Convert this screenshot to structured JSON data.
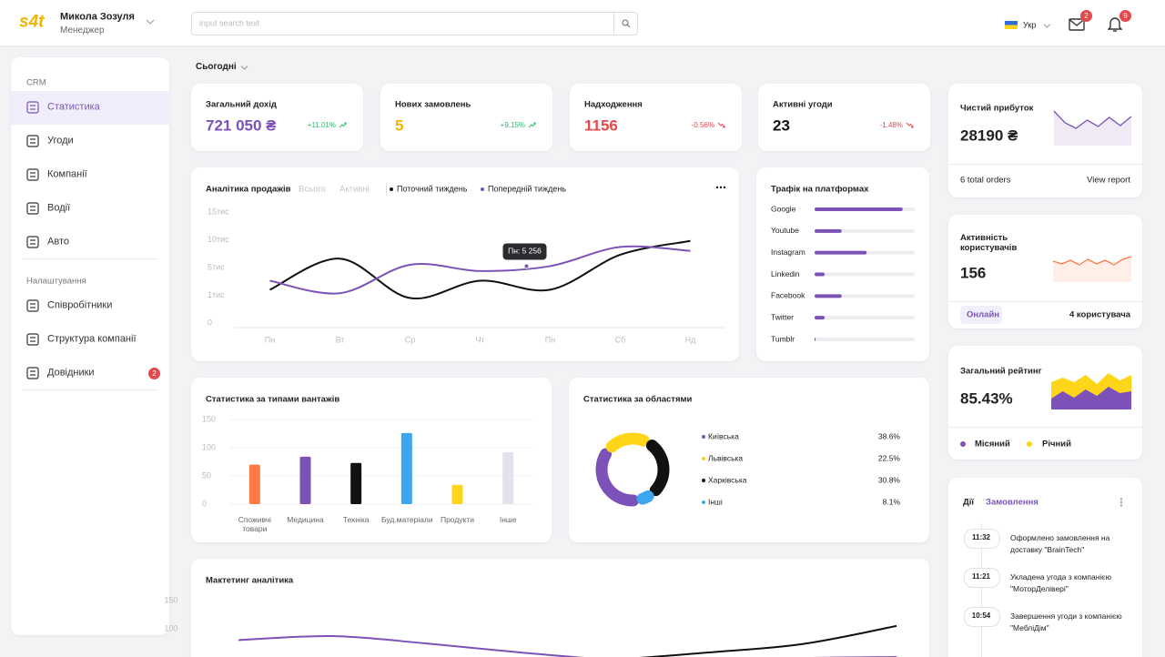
{
  "header": {
    "logo": "s4t",
    "user_name": "Микола Зозуля",
    "user_role": "Менеджер",
    "search_placeholder": "input search text",
    "language": "Укр",
    "mail_count": 2,
    "notification_count": 9
  },
  "sidebar": {
    "sections": [
      {
        "title": "CRM",
        "items": [
          {
            "label": "Статистика",
            "active": true
          },
          {
            "label": "Угоди"
          },
          {
            "label": "Компанії"
          },
          {
            "label": "Водії"
          },
          {
            "label": "Авто"
          }
        ]
      },
      {
        "title": "Налаштування",
        "items": [
          {
            "label": "Співробітники"
          },
          {
            "label": "Структура компанії"
          },
          {
            "label": "Довідники",
            "badge": 2
          }
        ]
      }
    ]
  },
  "period": "Сьогодні",
  "kpis": [
    {
      "label": "Загальний дохід",
      "value": "721 050 ₴",
      "change": "+11.01%",
      "color": "#7c52b8",
      "change_color": "#2eb86b"
    },
    {
      "label": "Нових замовлень",
      "value": "5",
      "change": "+9.15%",
      "color": "#f0b400",
      "change_color": "#2eb86b"
    },
    {
      "label": "Надходження",
      "value": "1156",
      "change": "-0.56%",
      "color": "#e5484d",
      "change_color": "#e5484d"
    },
    {
      "label": "Активні угоди",
      "value": "23",
      "change": "-1.48%",
      "color": "#111111",
      "change_color": "#e5484d"
    }
  ],
  "cards": {
    "profit": {
      "title": "Чистий прибуток",
      "value": "28190 ₴",
      "orders": "6 total orders",
      "link": "View report"
    },
    "activity": {
      "title": "Активність користувачів",
      "value": "156",
      "status": "Онлайн",
      "users": "4 користувача"
    },
    "rating": {
      "title": "Загальний рейтинг",
      "value": "85.43%"
    }
  },
  "actions": {
    "tabs": [
      "Дії",
      "Замовлення"
    ],
    "items": [
      {
        "time": "11:32",
        "text": "Оформлено замовлення на доставку \"BrainTech\""
      },
      {
        "time": "11:21",
        "text": "Укладена угода з компанією \"МоторДелівері\""
      },
      {
        "time": "10:54",
        "text": "Завершення угоди з компанією \"МебліДім\""
      }
    ]
  },
  "chart_data": [
    {
      "type": "line",
      "title": "Аналітика продажів",
      "tabs": [
        "Всього",
        "Активні"
      ],
      "categories": [
        "Пн",
        "Вт",
        "Ср",
        "Чт",
        "Пн",
        "Сб",
        "Нд"
      ],
      "series": [
        {
          "name": "Поточний тиждень",
          "color": "#111111",
          "values": [
            1800,
            6600,
            900,
            3100,
            1800,
            7300,
            9800
          ]
        },
        {
          "name": "Попередній тиждень",
          "color": "#7c52b8",
          "values": [
            3100,
            1300,
            5500,
            4500,
            5256,
            8700,
            8000
          ]
        }
      ],
      "ylim": [
        0,
        15000
      ],
      "yticks": [
        0,
        {
          "value": 1000,
          "label": "1тис"
        },
        {
          "value": 5000,
          "label": "5тис"
        },
        {
          "value": 10000,
          "label": "10тис"
        },
        {
          "value": 15000,
          "label": "15тис"
        }
      ],
      "tick_spaced": true,
      "grid": false,
      "annotation": "Пн: 5 256"
    },
    {
      "type": "bar",
      "horizontal": true,
      "title": "Трафік на платформах",
      "categories": [
        "Google",
        "Youtube",
        "Instagram",
        "Linkedin",
        "Facebook",
        "Twitter",
        "Tumblr"
      ],
      "values": [
        88,
        27,
        52,
        10,
        27,
        10,
        1
      ],
      "xlim": [
        0,
        100
      ],
      "color": "#7c52b8"
    },
    {
      "type": "bar",
      "title": "Статистика за типами вантажів",
      "categories": [
        "Споживчі товари",
        "Медицина",
        "Техніка",
        "Буд.матеріали",
        "Продукти",
        "Інше"
      ],
      "values": [
        70,
        84,
        73,
        126,
        34,
        92
      ],
      "colors": [
        "#ff7a45",
        "#7c52b8",
        "#111111",
        "#3ea6f0",
        "#ffd51a",
        "#e4e2ee"
      ],
      "ylim": [
        0,
        150
      ],
      "yticks": [
        0,
        50,
        100,
        150
      ],
      "grid": true
    },
    {
      "type": "pie",
      "donut": true,
      "title": "Статистика за областями",
      "categories": [
        "Київська",
        "Львівська",
        "Харківська",
        "Інші"
      ],
      "values": [
        38.6,
        22.5,
        30.8,
        8.1
      ],
      "value_labels": [
        "38.6%",
        "22.5%",
        "30.8%",
        "8.1%"
      ],
      "colors": [
        "#7c52b8",
        "#ffd51a",
        "#111111",
        "#3ea6f0"
      ]
    },
    {
      "type": "line",
      "title": "Мактетинг аналітика",
      "categories": [
        null,
        null,
        null,
        null,
        null,
        null,
        null,
        null
      ],
      "series": [
        {
          "color": "#7c52b8",
          "values": [
            80,
            87,
            74,
            58,
            45,
            42,
            48,
            50
          ]
        },
        {
          "color": "#111111",
          "values": [
            null,
            null,
            null,
            null,
            45,
            58,
            73,
            105
          ]
        }
      ],
      "ylim": [
        50,
        150
      ],
      "yticks": [
        100,
        150
      ],
      "grid": false
    },
    {
      "type": "area",
      "series": [
        {
          "color": "#7c52b8",
          "values": [
            38,
            25,
            19,
            28,
            21,
            31,
            22,
            32
          ]
        }
      ],
      "ylim": [
        0,
        40
      ],
      "fill_opacity": 0.12
    },
    {
      "type": "area",
      "series": [
        {
          "color": "#ff7a45",
          "values": [
            23,
            20,
            24,
            19,
            25,
            20,
            24,
            19,
            25,
            28
          ]
        }
      ],
      "ylim": [
        0,
        30
      ],
      "fill_opacity": 0.12
    },
    {
      "type": "area",
      "series": [
        {
          "name": "Місяний",
          "color": "#7c52b8",
          "values": [
            12,
            20,
            13,
            22,
            15,
            25,
            18,
            20
          ]
        },
        {
          "name": "Річний",
          "color": "#ffd51a",
          "values": [
            30,
            35,
            30,
            38,
            28,
            40,
            32,
            38
          ]
        }
      ],
      "ylim": [
        0,
        42
      ],
      "fill_opacity": 1
    }
  ]
}
